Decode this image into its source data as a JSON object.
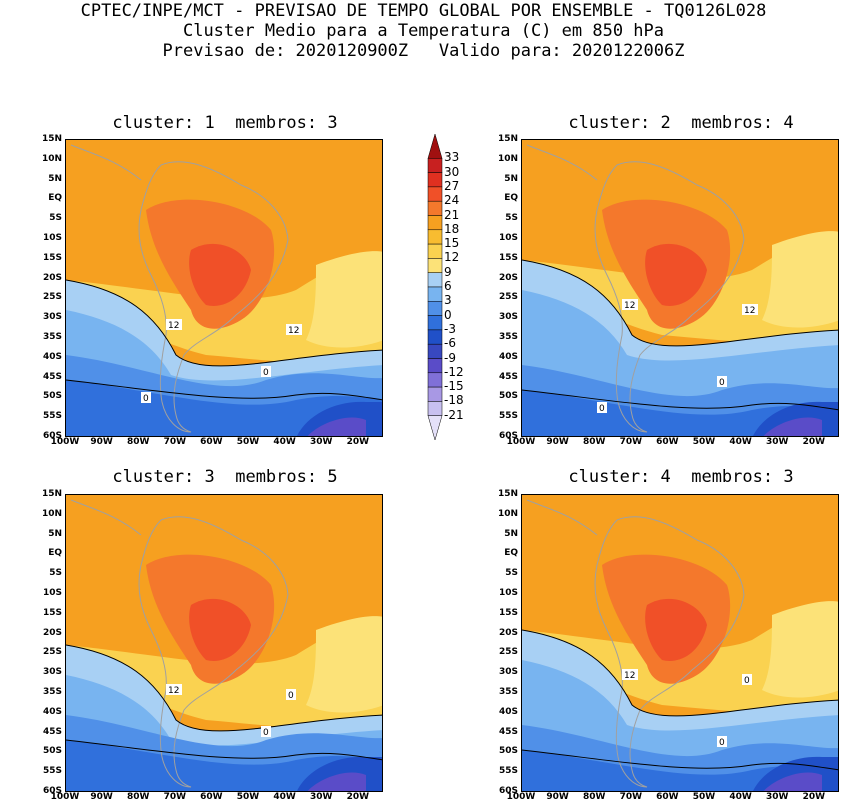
{
  "header": {
    "line1": "CPTEC/INPE/MCT - PREVISAO DE TEMPO GLOBAL POR ENSEMBLE - TQ0126L028",
    "line2": "Cluster Medio para a Temperatura (C) em 850 hPa",
    "line3": "Previsao de: 2020120900Z   Valido para: 2020122006Z"
  },
  "panels": [
    {
      "title": "cluster: 1  membros: 3",
      "contour_labels": [
        "12",
        "12",
        "0",
        "0"
      ]
    },
    {
      "title": "cluster: 2  membros: 4",
      "contour_labels": [
        "12",
        "12",
        "0",
        "0"
      ]
    },
    {
      "title": "cluster: 3  membros: 5",
      "contour_labels": [
        "12",
        "0",
        "0"
      ]
    },
    {
      "title": "cluster: 4  membros: 3",
      "contour_labels": [
        "12",
        "0",
        "0"
      ]
    }
  ],
  "lat_labels": [
    "15N",
    "10N",
    "5N",
    "EQ",
    "5S",
    "10S",
    "15S",
    "20S",
    "25S",
    "30S",
    "35S",
    "40S",
    "45S",
    "50S",
    "55S",
    "60S"
  ],
  "lon_labels": [
    "100W",
    "90W",
    "80W",
    "70W",
    "60W",
    "50W",
    "40W",
    "30W",
    "20W"
  ],
  "colorbar": {
    "labels": [
      "33",
      "30",
      "27",
      "24",
      "21",
      "18",
      "15",
      "12",
      "9",
      "6",
      "3",
      "0",
      "-3",
      "-6",
      "-9",
      "-12",
      "-15",
      "-18",
      "-21"
    ],
    "colors": [
      "#a01010",
      "#c82020",
      "#e03020",
      "#f05028",
      "#f4782c",
      "#f6a020",
      "#f8bc30",
      "#fad250",
      "#fce278",
      "#a8d0f4",
      "#78b4f0",
      "#5090e8",
      "#3070dc",
      "#2050c8",
      "#3848c0",
      "#5a4cc8",
      "#8070d8",
      "#a898e4",
      "#c8c0f0",
      "#e4e0f8"
    ]
  },
  "colors": {
    "contour_line": "#000000",
    "coastline": "#a0a0a0"
  }
}
